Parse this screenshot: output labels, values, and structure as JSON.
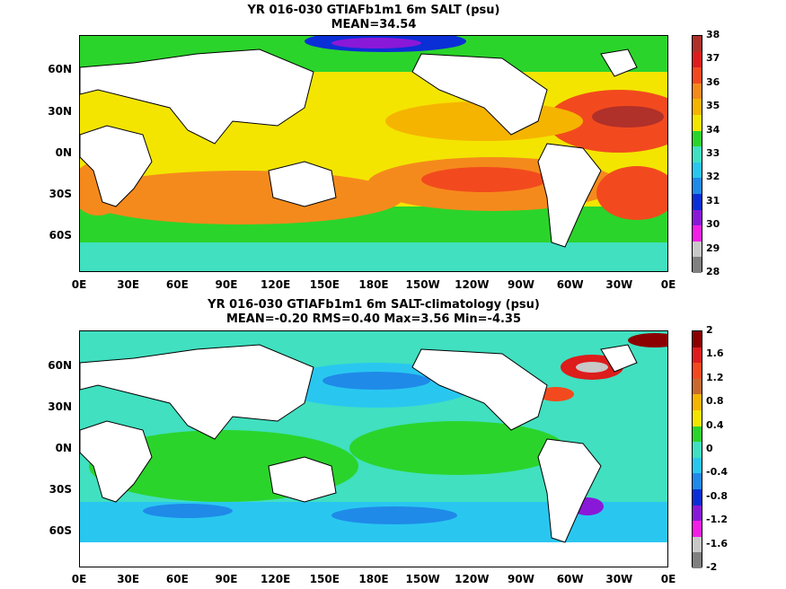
{
  "panel1": {
    "title_line1": "YR 016-030 GTIAFb1m1 6m SALT (psu)",
    "title_line2": "MEAN=34.54",
    "lat_labels": [
      "60N",
      "30N",
      "0N",
      "30S",
      "60S"
    ],
    "lon_labels": [
      "0E",
      "30E",
      "60E",
      "90E",
      "120E",
      "150E",
      "180E",
      "150W",
      "120W",
      "90W",
      "60W",
      "30W",
      "0E"
    ],
    "colorbar": {
      "labels": [
        "38",
        "37",
        "36",
        "35",
        "34",
        "33",
        "32",
        "31",
        "30",
        "29",
        "28"
      ],
      "colors": [
        "#b0302a",
        "#dd1c1c",
        "#f24a1e",
        "#f58a1c",
        "#f5b400",
        "#f3e500",
        "#2bd42b",
        "#40e0c0",
        "#29c7f0",
        "#1f8ae8",
        "#0a2fd6",
        "#8a18d8",
        "#f21fe6",
        "#c8c8c8",
        "#808080"
      ]
    }
  },
  "panel2": {
    "title_line1": "YR 016-030 GTIAFb1m1 6m SALT-climatology (psu)",
    "title_line2": "MEAN=-0.20   RMS=0.40   Max=3.56   Min=-4.35",
    "lat_labels": [
      "60N",
      "30N",
      "0N",
      "30S",
      "60S"
    ],
    "lon_labels": [
      "0E",
      "30E",
      "60E",
      "90E",
      "120E",
      "150E",
      "180E",
      "150W",
      "120W",
      "90W",
      "60W",
      "30W",
      "0E"
    ],
    "colorbar": {
      "labels": [
        "2",
        "1.6",
        "1.2",
        "0.8",
        "0.4",
        "0",
        "-0.4",
        "-0.8",
        "-1.2",
        "-1.6",
        "-2"
      ],
      "colors": [
        "#8b0000",
        "#dd1c1c",
        "#f24a1e",
        "#c86a30",
        "#f5b400",
        "#f3e500",
        "#2bd42b",
        "#40e0c0",
        "#29c7f0",
        "#1f8ae8",
        "#0a2fd6",
        "#8a18d8",
        "#f21fe6",
        "#c8c8c8",
        "#808080"
      ]
    }
  }
}
